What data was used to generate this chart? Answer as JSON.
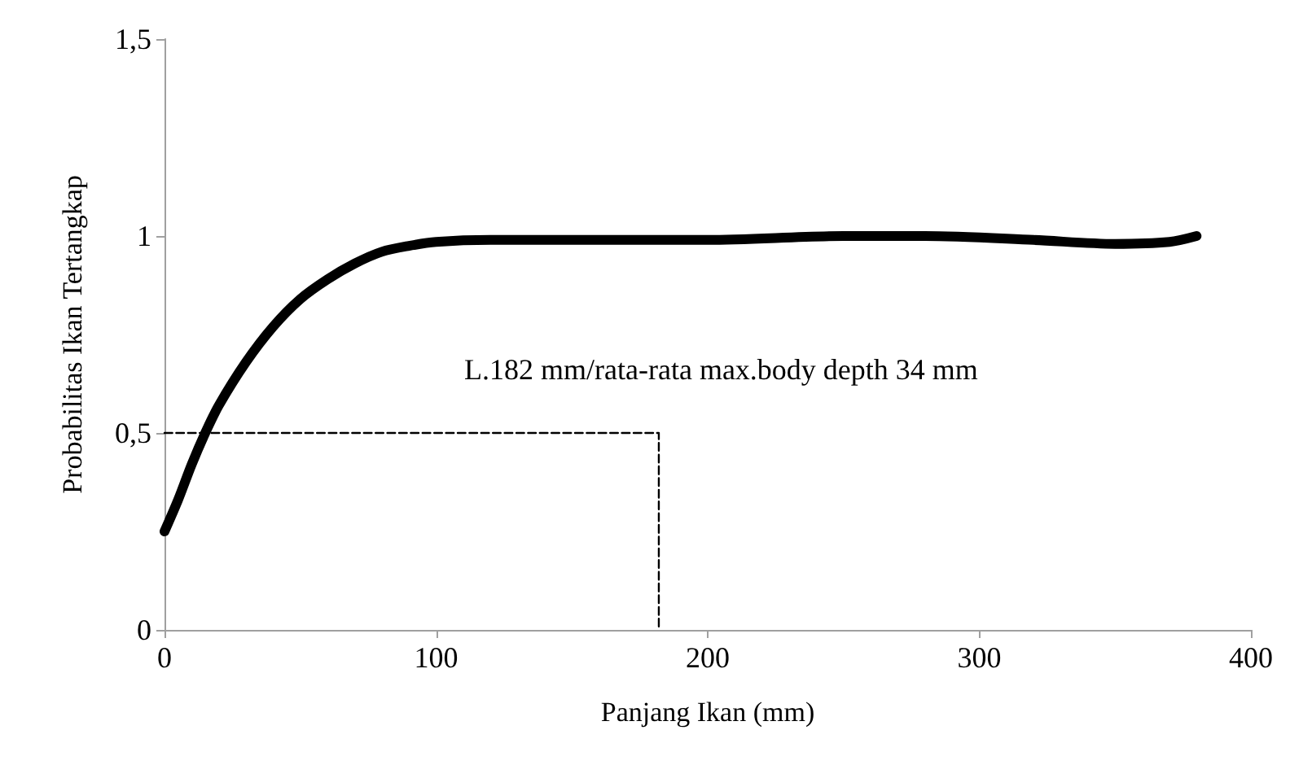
{
  "chart_data": {
    "type": "line",
    "xlabel": "Panjang Ikan (mm)",
    "ylabel": "Probabilitas Ikan Tertangkap",
    "xlim": [
      0,
      400
    ],
    "xticks": [
      0,
      100,
      200,
      300,
      400
    ],
    "ylim": [
      0,
      1.5
    ],
    "yticks": [
      {
        "value": 0,
        "label": "0"
      },
      {
        "value": 0.5,
        "label": "0,5"
      },
      {
        "value": 1,
        "label": "1"
      },
      {
        "value": 1.5,
        "label": "1,5"
      }
    ],
    "grid": false,
    "marker": "none",
    "annotations": [
      "L.182 mm/rata-rata max.body depth 34 mm"
    ],
    "series": [
      {
        "color": "#000000",
        "line_style": "solid",
        "x": [
          0,
          5,
          10,
          15,
          20,
          30,
          40,
          50,
          60,
          70,
          80,
          90,
          100,
          120,
          150,
          200,
          250,
          280,
          320,
          350,
          370,
          380
        ],
        "values": [
          0.25,
          0.33,
          0.42,
          0.5,
          0.57,
          0.68,
          0.77,
          0.84,
          0.89,
          0.93,
          0.96,
          0.975,
          0.985,
          0.99,
          0.99,
          0.99,
          1.0,
          1.0,
          0.99,
          0.98,
          0.985,
          1.0
        ]
      },
      {
        "color": "#000000",
        "line_style": "dashed",
        "x": [
          0,
          182,
          182
        ],
        "values": [
          0.5,
          0.5,
          0
        ]
      }
    ]
  }
}
